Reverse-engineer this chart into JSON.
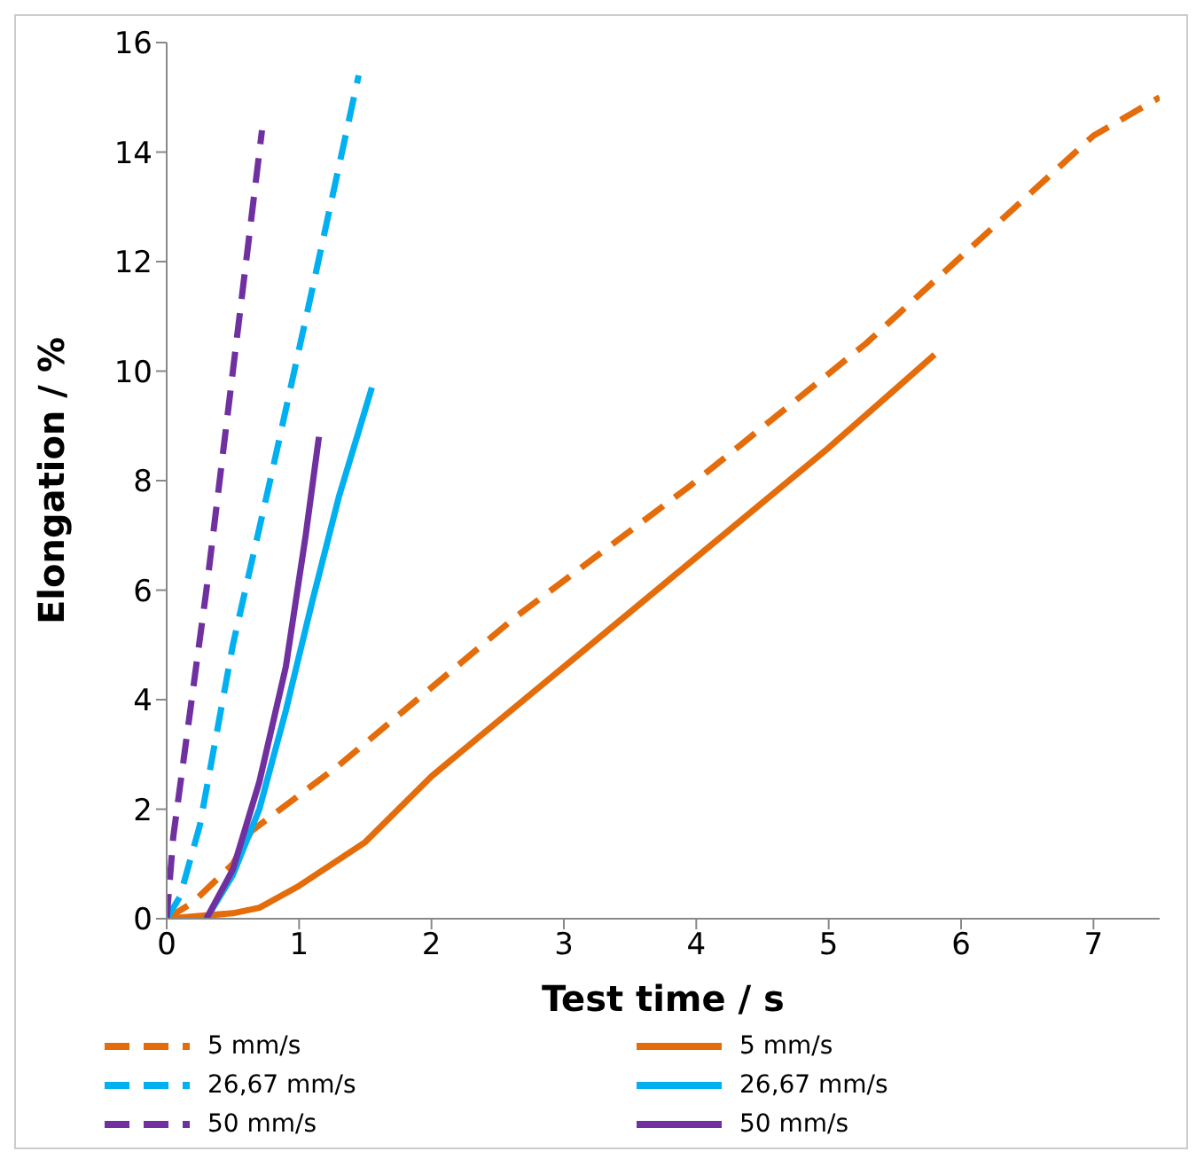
{
  "chart_data": {
    "type": "line",
    "xlabel": "Test time / s",
    "ylabel": "Elongation / %",
    "xlim": [
      0,
      7.5
    ],
    "xticks": [
      0,
      1,
      2,
      3,
      4,
      5,
      6,
      7
    ],
    "ylim": [
      0,
      16
    ],
    "yticks": [
      0,
      2,
      4,
      6,
      8,
      10,
      12,
      14,
      16
    ],
    "legend": "bottom",
    "marker": "none",
    "series": [
      {
        "name": "5 mm/s",
        "color": "#e46c0a",
        "line_style": "dashed",
        "x": [
          0,
          0.2,
          0.5,
          0.64,
          1.3,
          2.63,
          3.95,
          5.28,
          7,
          7.5
        ],
        "values": [
          0,
          0.3,
          1.0,
          1.6,
          2.8,
          5.5,
          7.9,
          10.5,
          14.3,
          15.0
        ]
      },
      {
        "name": "5 mm/s",
        "color": "#e46c0a",
        "line_style": "solid",
        "x": [
          0,
          0.5,
          0.7,
          1.0,
          1.5,
          2,
          3,
          4,
          5,
          5.8
        ],
        "values": [
          0,
          0.1,
          0.2,
          0.6,
          1.4,
          2.6,
          4.6,
          6.6,
          8.6,
          10.3
        ]
      },
      {
        "name": "26,67 mm/s",
        "color": "#00b0f0",
        "line_style": "dashed",
        "x": [
          0,
          0.1,
          0.25,
          0.5,
          0.8,
          1.1,
          1.45
        ],
        "values": [
          0,
          0.4,
          1.7,
          5.0,
          8.2,
          11.5,
          15.4
        ]
      },
      {
        "name": "26,67 mm/s",
        "color": "#00b0f0",
        "line_style": "solid",
        "x": [
          0.3,
          0.5,
          0.7,
          0.9,
          1.1,
          1.3,
          1.55
        ],
        "values": [
          0,
          0.8,
          2.0,
          3.8,
          5.8,
          7.7,
          9.7
        ]
      },
      {
        "name": "50 mm/s",
        "color": "#7030a0",
        "line_style": "dashed",
        "x": [
          0,
          0.05,
          0.15,
          0.3,
          0.45,
          0.6,
          0.72
        ],
        "values": [
          0,
          1.5,
          3.3,
          6.0,
          9.0,
          12.0,
          14.4
        ]
      },
      {
        "name": "50 mm/s",
        "color": "#7030a0",
        "line_style": "solid",
        "x": [
          0.3,
          0.5,
          0.7,
          0.9,
          1.05,
          1.15
        ],
        "values": [
          0,
          0.9,
          2.5,
          4.6,
          7.0,
          8.8
        ]
      }
    ]
  }
}
